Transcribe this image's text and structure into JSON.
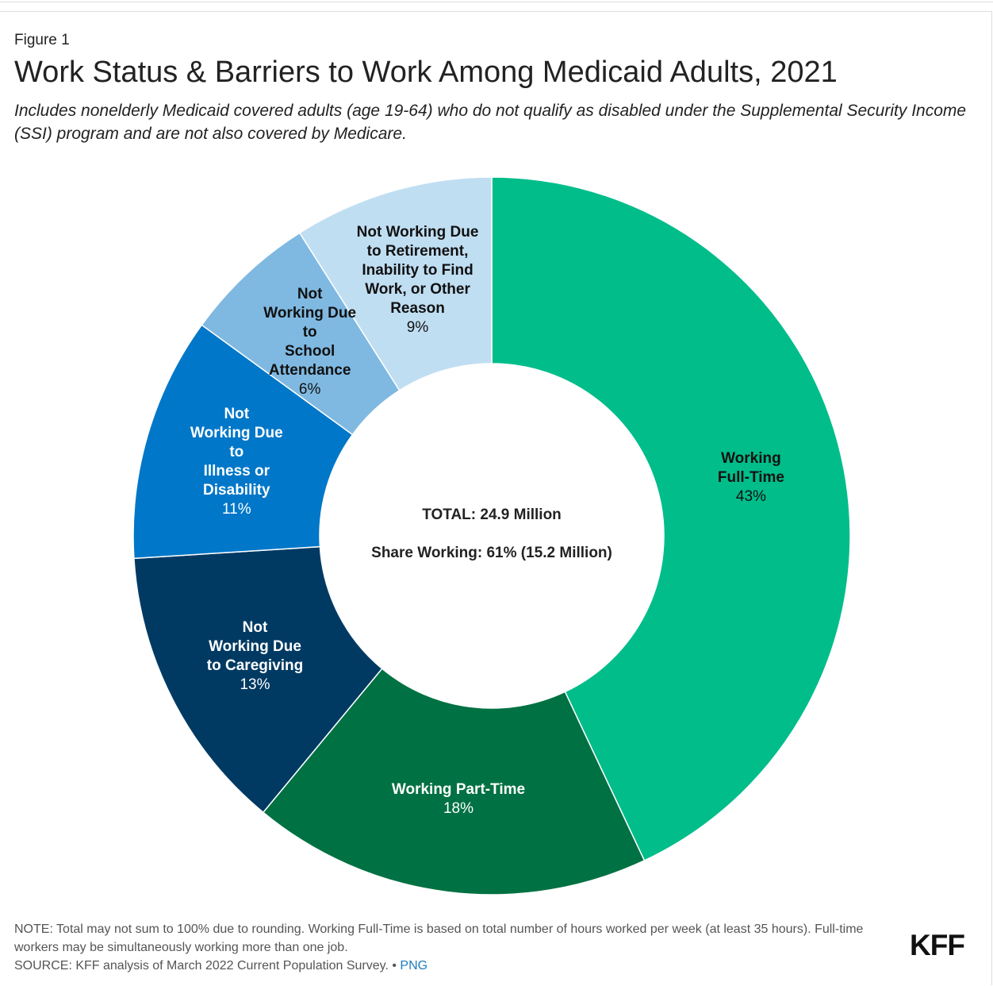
{
  "figure_label": "Figure 1",
  "title": "Work Status & Barriers to Work Among Medicaid Adults, 2021",
  "subtitle": "Includes nonelderly Medicaid covered adults (age 19-64) who do not qualify as disabled under the Supplemental Security Income (SSI) program and are not also covered by Medicare.",
  "center": {
    "total": "TOTAL: 24.9 Million",
    "share": "Share Working: 61% (15.2 Million)"
  },
  "chart_data": {
    "type": "pie",
    "donut": true,
    "title": "Work Status & Barriers to Work Among Medicaid Adults, 2021",
    "categories": [
      "Working Full-Time",
      "Working Part-Time",
      "Not Working Due to Caregiving",
      "Not Working Due to Illness or Disability",
      "Not Working Due to School Attendance",
      "Not Working Due to Retirement, Inability to Find Work, or Other Reason"
    ],
    "values": [
      43,
      18,
      13,
      11,
      6,
      9
    ],
    "unit": "%",
    "slices": [
      {
        "label": "Working\nFull-Time",
        "value_label": "43%",
        "value": 43,
        "color": "#00bd8a",
        "text_color": "#111111"
      },
      {
        "label": "Working Part-Time",
        "value_label": "18%",
        "value": 18,
        "color": "#007142",
        "text_color": "#ffffff"
      },
      {
        "label": "Not\nWorking Due\nto Caregiving",
        "value_label": "13%",
        "value": 13,
        "color": "#003a63",
        "text_color": "#ffffff"
      },
      {
        "label": "Not\nWorking Due\nto\nIllness or\nDisability",
        "value_label": "11%",
        "value": 11,
        "color": "#0077c8",
        "text_color": "#ffffff"
      },
      {
        "label": "Not\nWorking Due\nto\n        School\n        Attendance",
        "value_label": "        6%",
        "value": 6,
        "color": "#7fb9e1",
        "text_color": "#111111"
      },
      {
        "label": "Not Working Due\nto Retirement,\nInability to Find\nWork, or Other\nReason",
        "value_label": "9%",
        "value": 9,
        "color": "#c0def2",
        "text_color": "#111111"
      }
    ]
  },
  "footer": {
    "note": "NOTE: Total may not sum to 100% due to rounding. Working Full-Time is based on total number of hours worked per week (at least 35 hours). Full-time workers may be simultaneously working more than one job.",
    "source": "SOURCE: KFF analysis of March 2022 Current Population Survey. •",
    "png_link": "PNG",
    "logo": "KFF"
  }
}
